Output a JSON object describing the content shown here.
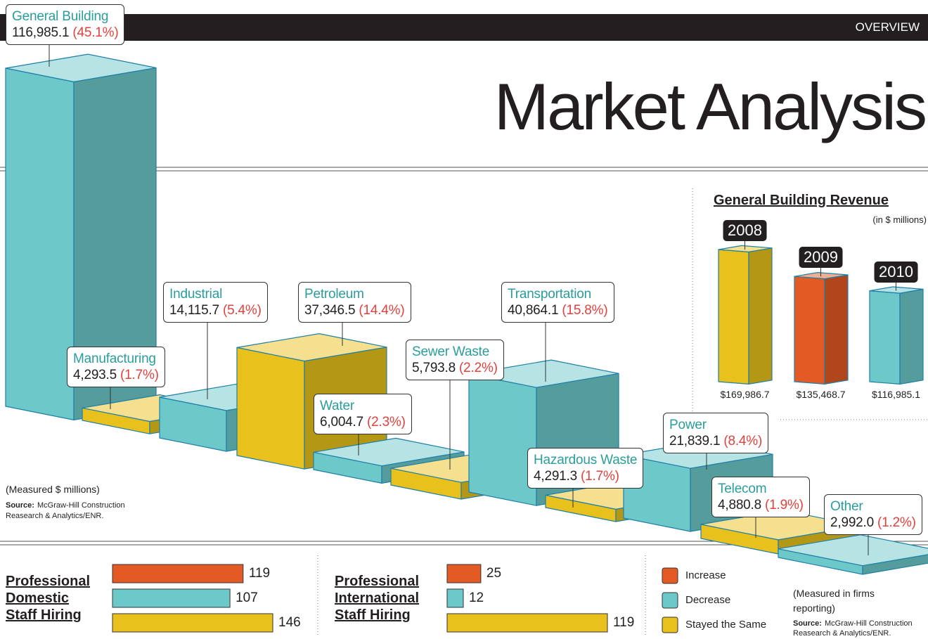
{
  "header": {
    "section": "OVERVIEW",
    "title": "Market Analysis"
  },
  "legend": {
    "items": [
      {
        "name": "Increase",
        "color": "#e35a25"
      },
      {
        "name": "Decrease",
        "color": "#6dc9c9"
      },
      {
        "name": "Stayed the Same",
        "color": "#e8c11c"
      }
    ]
  },
  "chart_data": [
    {
      "type": "bar3d",
      "categories": [
        "General Building",
        "Manufacturing",
        "Industrial",
        "Petroleum",
        "Water",
        "Sewer Waste",
        "Transportation",
        "Hazardous Waste",
        "Power",
        "Telecom",
        "Other"
      ],
      "values": [
        116985.1,
        4293.5,
        14115.7,
        37346.5,
        6004.7,
        5793.8,
        40864.1,
        4291.3,
        21839.1,
        4880.8,
        2992.0
      ],
      "value_labels": [
        "116,985.1",
        "4,293.5",
        "14,115.7",
        "37,346.5",
        "6,004.7",
        "5,793.8",
        "40,864.1",
        "4,291.3",
        "21,839.1",
        "4,880.8",
        "2,992.0"
      ],
      "shares": [
        45.1,
        1.7,
        5.4,
        14.4,
        2.3,
        2.2,
        15.8,
        1.7,
        8.4,
        1.9,
        1.2
      ],
      "share_labels": [
        "(45.1%)",
        "(1.7%)",
        "(5.4%)",
        "(14.4%)",
        "(2.3%)",
        "(2.2%)",
        "(15.8%)",
        "(1.7%)",
        "(8.4%)",
        "(1.9%)",
        "(1.2%)"
      ],
      "colors": [
        "#6dc9c9",
        "#e8c11c",
        "#6dc9c9",
        "#e8c11c",
        "#6dc9c9",
        "#e8c11c",
        "#6dc9c9",
        "#e8c11c",
        "#6dc9c9",
        "#e8c11c",
        "#6dc9c9"
      ],
      "note": "(Measured $ millions)",
      "source_label": "Source:",
      "source": "McGraw-Hill Construction Reasearch & Analytics/ENR."
    },
    {
      "type": "bar3d",
      "title": "General Building Revenue",
      "subtitle": "(in $ millions)",
      "categories": [
        "2008",
        "2009",
        "2010"
      ],
      "values": [
        169986.7,
        135468.7,
        116985.1
      ],
      "value_labels": [
        "$169,986.7",
        "$135,468.7",
        "$116,985.1"
      ],
      "colors": [
        "#e8c11c",
        "#e35a25",
        "#6dc9c9"
      ]
    },
    {
      "type": "hbar",
      "title": "Professional Domestic Staff Hiring",
      "values": [
        119,
        107,
        146
      ],
      "xlim": [
        0,
        146
      ]
    },
    {
      "type": "hbar",
      "title": "Professional International Staff Hiring",
      "values": [
        25,
        12,
        119
      ],
      "xlim": [
        0,
        119
      ],
      "note": "(Measured in firms reporting)",
      "source_label": "Source:",
      "source": "McGraw-Hill Construction Reasearch & Analytics/ENR."
    }
  ]
}
